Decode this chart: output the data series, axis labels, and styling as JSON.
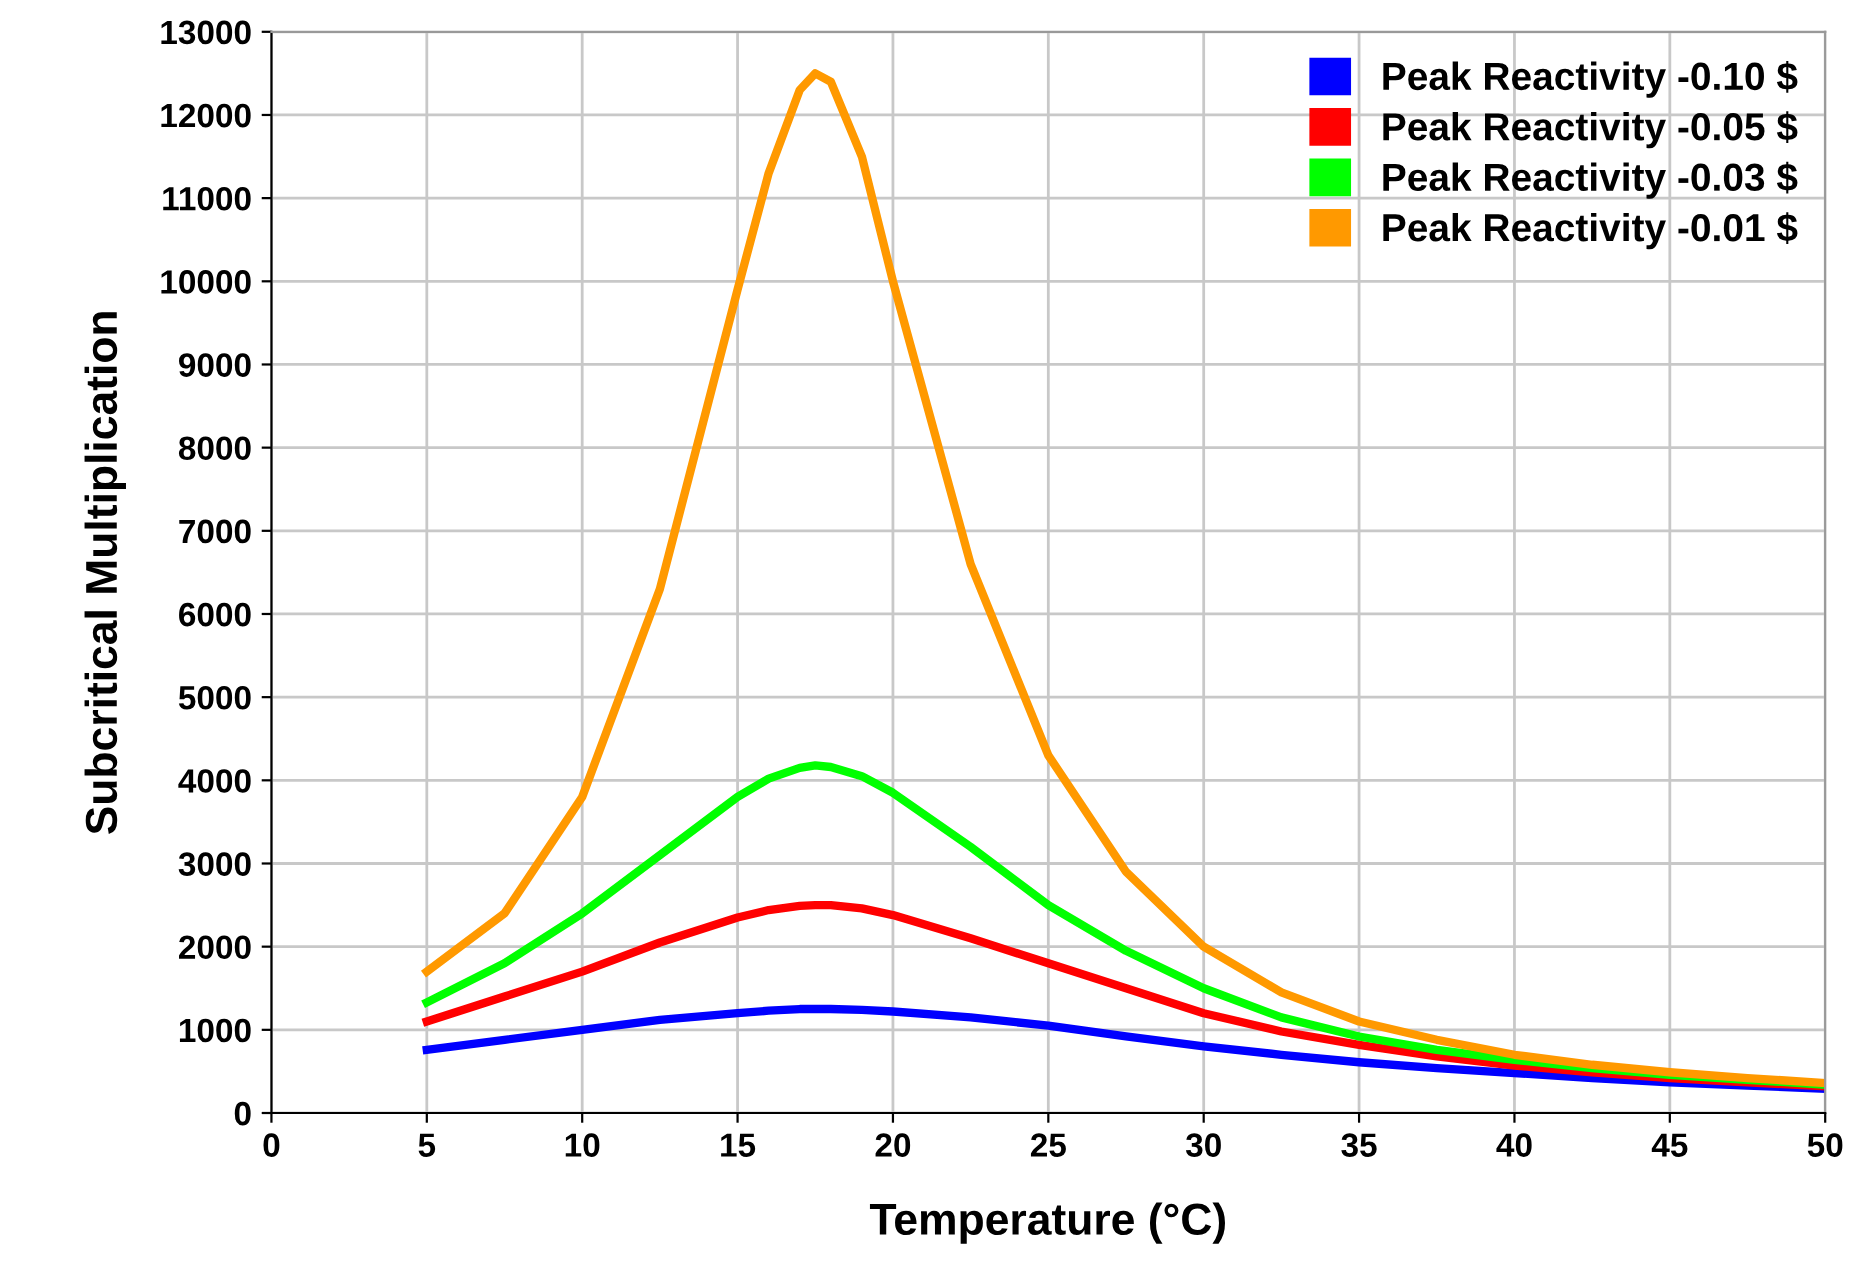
{
  "chart_data": {
    "type": "line",
    "xlabel": "Temperature (°C)",
    "ylabel": "Subcritical Multiplication",
    "xlim": [
      0,
      50
    ],
    "xticks": [
      0,
      5,
      10,
      15,
      20,
      25,
      30,
      35,
      40,
      45,
      50
    ],
    "ylim": [
      0,
      13000
    ],
    "yticks": [
      0,
      1000,
      2000,
      3000,
      4000,
      5000,
      6000,
      7000,
      8000,
      9000,
      10000,
      11000,
      12000,
      13000
    ],
    "grid": true,
    "legend": "top right",
    "marker": "none",
    "line_style": "solid",
    "x": [
      5,
      7.5,
      10,
      12.5,
      15,
      16,
      17,
      17.5,
      18,
      19,
      20,
      22.5,
      25,
      27.5,
      30,
      32.5,
      35,
      37.5,
      40,
      42.5,
      45,
      47.5,
      50
    ],
    "series": [
      {
        "name": "Peak Reactivity -0.10 $",
        "color": "#0000ff",
        "values": [
          760,
          880,
          1000,
          1120,
          1200,
          1230,
          1250,
          1250,
          1250,
          1240,
          1220,
          1150,
          1050,
          920,
          800,
          700,
          610,
          540,
          480,
          420,
          370,
          330,
          290
        ]
      },
      {
        "name": "Peak Reactivity -0.05 $",
        "color": "#ff0000",
        "values": [
          1100,
          1400,
          1700,
          2050,
          2350,
          2440,
          2490,
          2500,
          2500,
          2460,
          2380,
          2100,
          1800,
          1500,
          1200,
          980,
          820,
          680,
          570,
          490,
          420,
          370,
          320
        ]
      },
      {
        "name": "Peak Reactivity -0.03 $",
        "color": "#00ff00",
        "values": [
          1330,
          1800,
          2400,
          3100,
          3800,
          4020,
          4150,
          4180,
          4160,
          4050,
          3850,
          3200,
          2500,
          1950,
          1500,
          1150,
          920,
          760,
          640,
          540,
          460,
          400,
          340
        ]
      },
      {
        "name": "Peak Reactivity -0.01 $",
        "color": "#ff9900",
        "values": [
          1700,
          2400,
          3800,
          6300,
          9900,
          11300,
          12300,
          12500,
          12400,
          11500,
          10000,
          6600,
          4300,
          2900,
          2000,
          1450,
          1100,
          880,
          700,
          580,
          490,
          420,
          360
        ]
      }
    ]
  }
}
